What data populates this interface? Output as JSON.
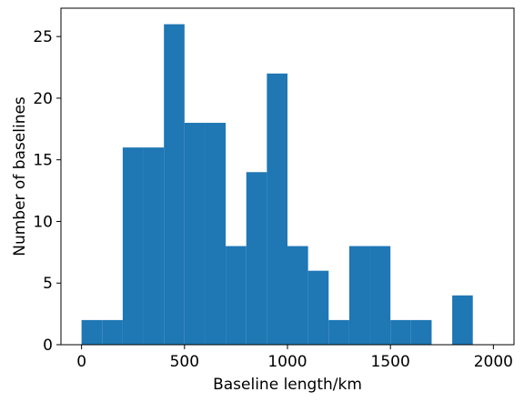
{
  "chart_data": {
    "type": "histogram",
    "bins": [
      0,
      100,
      200,
      300,
      400,
      500,
      600,
      700,
      800,
      900,
      1000,
      1100,
      1200,
      1300,
      1400,
      1500,
      1600,
      1700,
      1800,
      1900,
      2000
    ],
    "values": [
      2,
      2,
      16,
      16,
      26,
      18,
      18,
      8,
      14,
      22,
      8,
      6,
      2,
      8,
      8,
      2,
      2,
      0,
      4,
      0
    ],
    "color": "#1f77b4",
    "xlabel": "Baseline length/km",
    "ylabel": "Number of baselines",
    "xlim": [
      -100,
      2100
    ],
    "ylim": [
      0,
      27.3
    ],
    "xticks": [
      0,
      500,
      1000,
      1500,
      2000
    ],
    "yticks": [
      0,
      5,
      10,
      15,
      20,
      25
    ]
  }
}
